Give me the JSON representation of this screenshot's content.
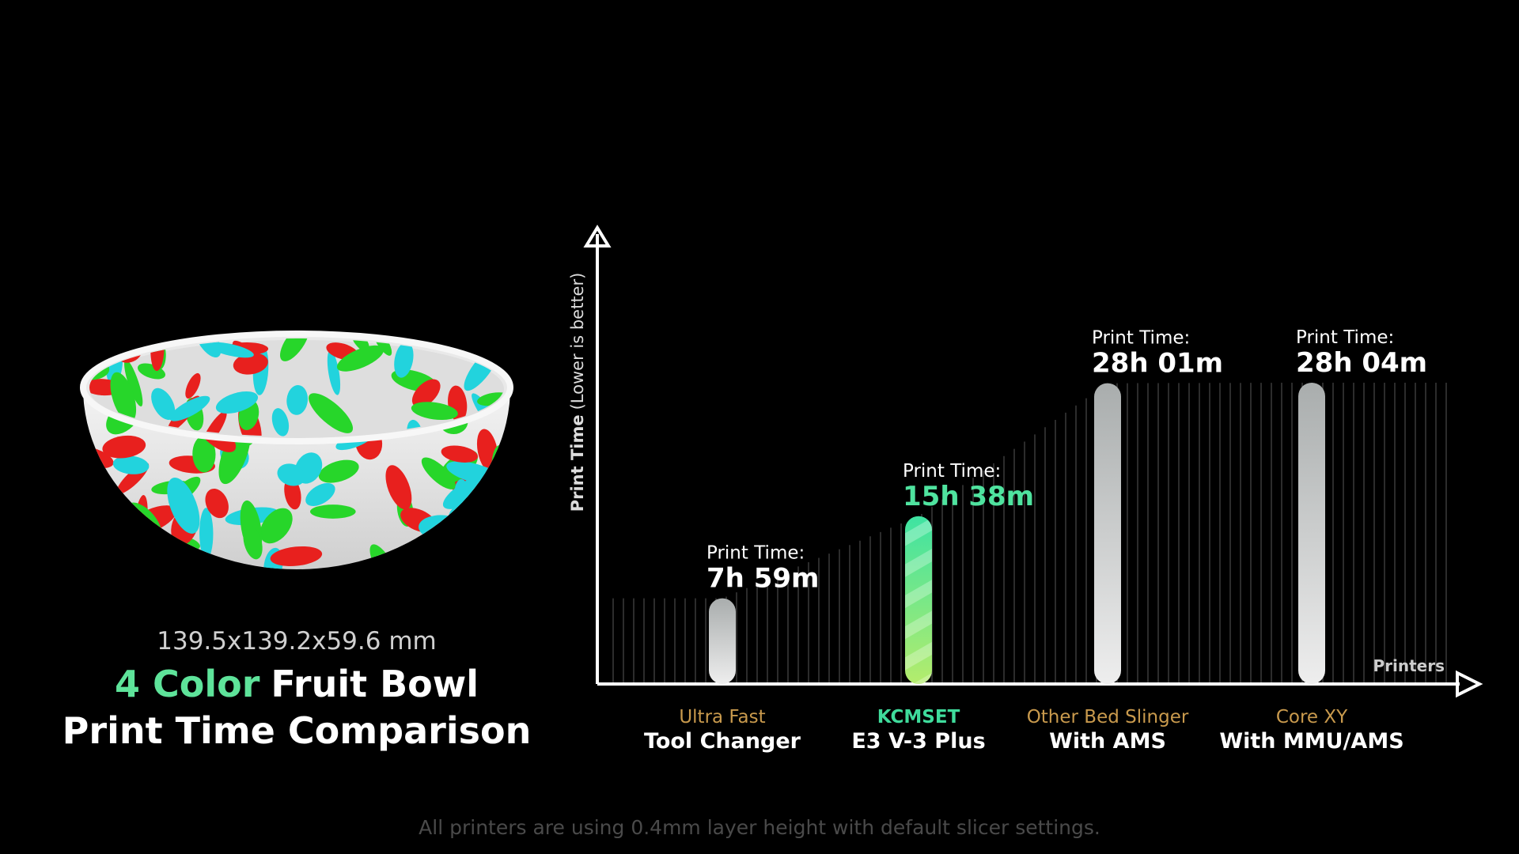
{
  "chart_data": {
    "type": "bar",
    "dimensions": "139.5x139.2x59.6 mm",
    "title_highlight": "4 Color",
    "title": "Fruit Bowl",
    "subtitle": "Print Time Comparison",
    "y_label": "Print Time",
    "y_label_note": "(Lower is better)",
    "x_label": "Printers",
    "annotation": "Print Time:",
    "category_groups": [
      "Ultra Fast",
      "KCMSET",
      "Other Bed Slinger",
      "Core XY"
    ],
    "categories": [
      "Tool Changer",
      "E3 V-3 Plus",
      "With AMS",
      "With MMU/AMS"
    ],
    "values": [
      479,
      938,
      1681,
      1684
    ],
    "value_labels": [
      "7h 59m",
      "15h 38m",
      "28h 01m",
      "28h 04m"
    ],
    "colors": [
      "#d6d8d8",
      "#4fe39f",
      "#d6d8d8",
      "#d6d8d8"
    ],
    "label_colors": [
      "#ffffff",
      "#4fe39f",
      "#ffffff",
      "#ffffff"
    ],
    "group_colors": [
      "#c99a4d",
      "#3fdc9c",
      "#c99a4d",
      "#c99a4d"
    ],
    "ylim": [
      0,
      2550
    ],
    "footnote": "All printers are using 0.4mm layer height with default slicer settings."
  }
}
